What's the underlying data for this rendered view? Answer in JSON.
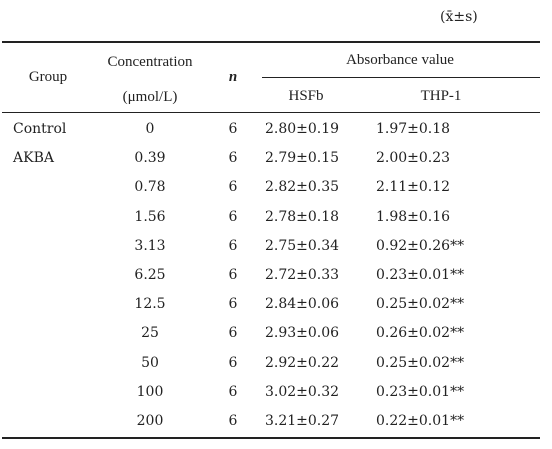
{
  "note": "(x̄±s)",
  "header": {
    "group": "Group",
    "concentration": "Concentration",
    "concentration_unit": "(μmol/L)",
    "n": "n",
    "absorbance": "Absorbance value",
    "hsfb": "HSFb",
    "thp1": "THP-1"
  },
  "table": {
    "rows": [
      {
        "group": "Control",
        "concentration": "0",
        "n": "6",
        "hsfb": "2.80±0.19",
        "thp1": "1.97±0.18"
      },
      {
        "group": "AKBA",
        "concentration": "0.39",
        "n": "6",
        "hsfb": "2.79±0.15",
        "thp1": "2.00±0.23"
      },
      {
        "concentration": "0.78",
        "n": "6",
        "hsfb": "2.82±0.35",
        "thp1": "2.11±0.12"
      },
      {
        "concentration": "1.56",
        "n": "6",
        "hsfb": "2.78±0.18",
        "thp1": "1.98±0.16"
      },
      {
        "concentration": "3.13",
        "n": "6",
        "hsfb": "2.75±0.34",
        "thp1": "0.92±0.26**"
      },
      {
        "concentration": "6.25",
        "n": "6",
        "hsfb": "2.72±0.33",
        "thp1": "0.23±0.01**"
      },
      {
        "concentration": "12.5",
        "n": "6",
        "hsfb": "2.84±0.06",
        "thp1": "0.25±0.02**"
      },
      {
        "concentration": "25",
        "n": "6",
        "hsfb": "2.93±0.06",
        "thp1": "0.26±0.02**"
      },
      {
        "concentration": "50",
        "n": "6",
        "hsfb": "2.92±0.22",
        "thp1": "0.25±0.02**"
      },
      {
        "concentration": "100",
        "n": "6",
        "hsfb": "3.02±0.32",
        "thp1": "0.23±0.01**"
      },
      {
        "concentration": "200",
        "n": "6",
        "hsfb": "3.21±0.27",
        "thp1": "0.22±0.01**"
      }
    ]
  }
}
